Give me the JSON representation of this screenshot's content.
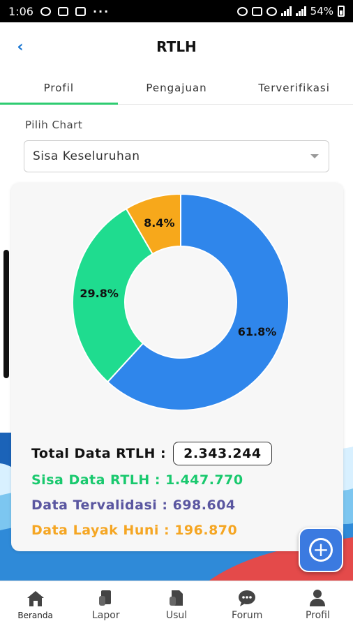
{
  "status_bar": {
    "time": "1:06",
    "battery": "54%"
  },
  "header": {
    "title": "RTLH",
    "back_icon": "chevron-left-icon"
  },
  "tabs": [
    {
      "label": "Profil",
      "active": true
    },
    {
      "label": "Pengajuan",
      "active": false
    },
    {
      "label": "Terverifikasi",
      "active": false
    }
  ],
  "picker": {
    "label": "Pilih Chart",
    "selected": "Sisa Keseluruhan"
  },
  "chart_data": {
    "type": "pie",
    "donut": true,
    "slices": [
      {
        "label": "61.8%",
        "value": 61.8,
        "color": "#2f86eb"
      },
      {
        "label": "29.8%",
        "value": 29.8,
        "color": "#1fdc8f"
      },
      {
        "label": "8.4%",
        "value": 8.4,
        "color": "#f7a81b"
      }
    ]
  },
  "stats": {
    "total_label": "Total Data RTLH :",
    "total_value": "2.343.244",
    "sisa": "Sisa Data RTLH : 1.447.770",
    "tervalidasi": "Data Tervalidasi : 698.604",
    "layak": "Data Layak Huni : 196.870"
  },
  "colors": {
    "sisa": "#19c96e",
    "tervalidasi": "#5a56a0",
    "layak": "#f5a623",
    "accent": "#3b7ae0"
  },
  "bottom_nav": [
    {
      "label": "Beranda",
      "icon": "home-icon",
      "active": true
    },
    {
      "label": "Lapor",
      "icon": "report-icon",
      "active": false
    },
    {
      "label": "Usul",
      "icon": "document-icon",
      "active": false
    },
    {
      "label": "Forum",
      "icon": "chat-icon",
      "active": false
    },
    {
      "label": "Profil",
      "icon": "person-icon",
      "active": false
    }
  ]
}
